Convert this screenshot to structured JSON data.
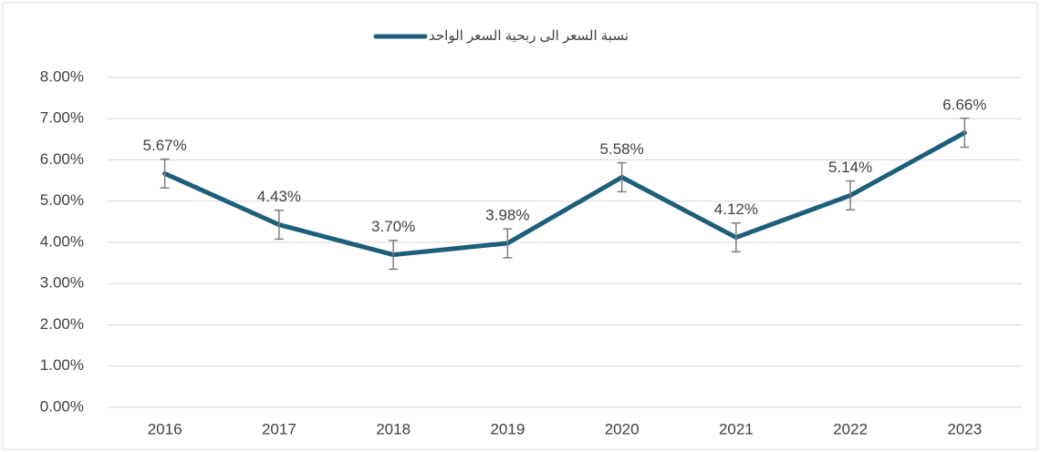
{
  "chart_data": {
    "type": "line",
    "legend_position": "top",
    "categories": [
      "2016",
      "2017",
      "2018",
      "2019",
      "2020",
      "2021",
      "2022",
      "2023"
    ],
    "series": [
      {
        "name": "نسبة السعر الى ربحية السعر الواحد",
        "color": "#1d5e7b",
        "values": [
          5.67,
          4.43,
          3.7,
          3.98,
          5.58,
          4.12,
          5.14,
          6.66
        ],
        "value_labels": [
          "5.67%",
          "4.43%",
          "3.70%",
          "3.98%",
          "5.58%",
          "4.12%",
          "5.14%",
          "6.66%"
        ],
        "errors": [
          0.35,
          0.35,
          0.35,
          0.35,
          0.35,
          0.35,
          0.35,
          0.35
        ],
        "error_color": "#7f7f7f"
      }
    ],
    "ylim": [
      0,
      8
    ],
    "yticks": [
      {
        "value": 0,
        "label": "0.00%"
      },
      {
        "value": 1,
        "label": "1.00%"
      },
      {
        "value": 2,
        "label": "2.00%"
      },
      {
        "value": 3,
        "label": "3.00%"
      },
      {
        "value": 4,
        "label": "4.00%"
      },
      {
        "value": 5,
        "label": "5.00%"
      },
      {
        "value": 6,
        "label": "6.00%"
      },
      {
        "value": 7,
        "label": "7.00%"
      },
      {
        "value": 8,
        "label": "8.00%"
      }
    ],
    "grid": true
  }
}
